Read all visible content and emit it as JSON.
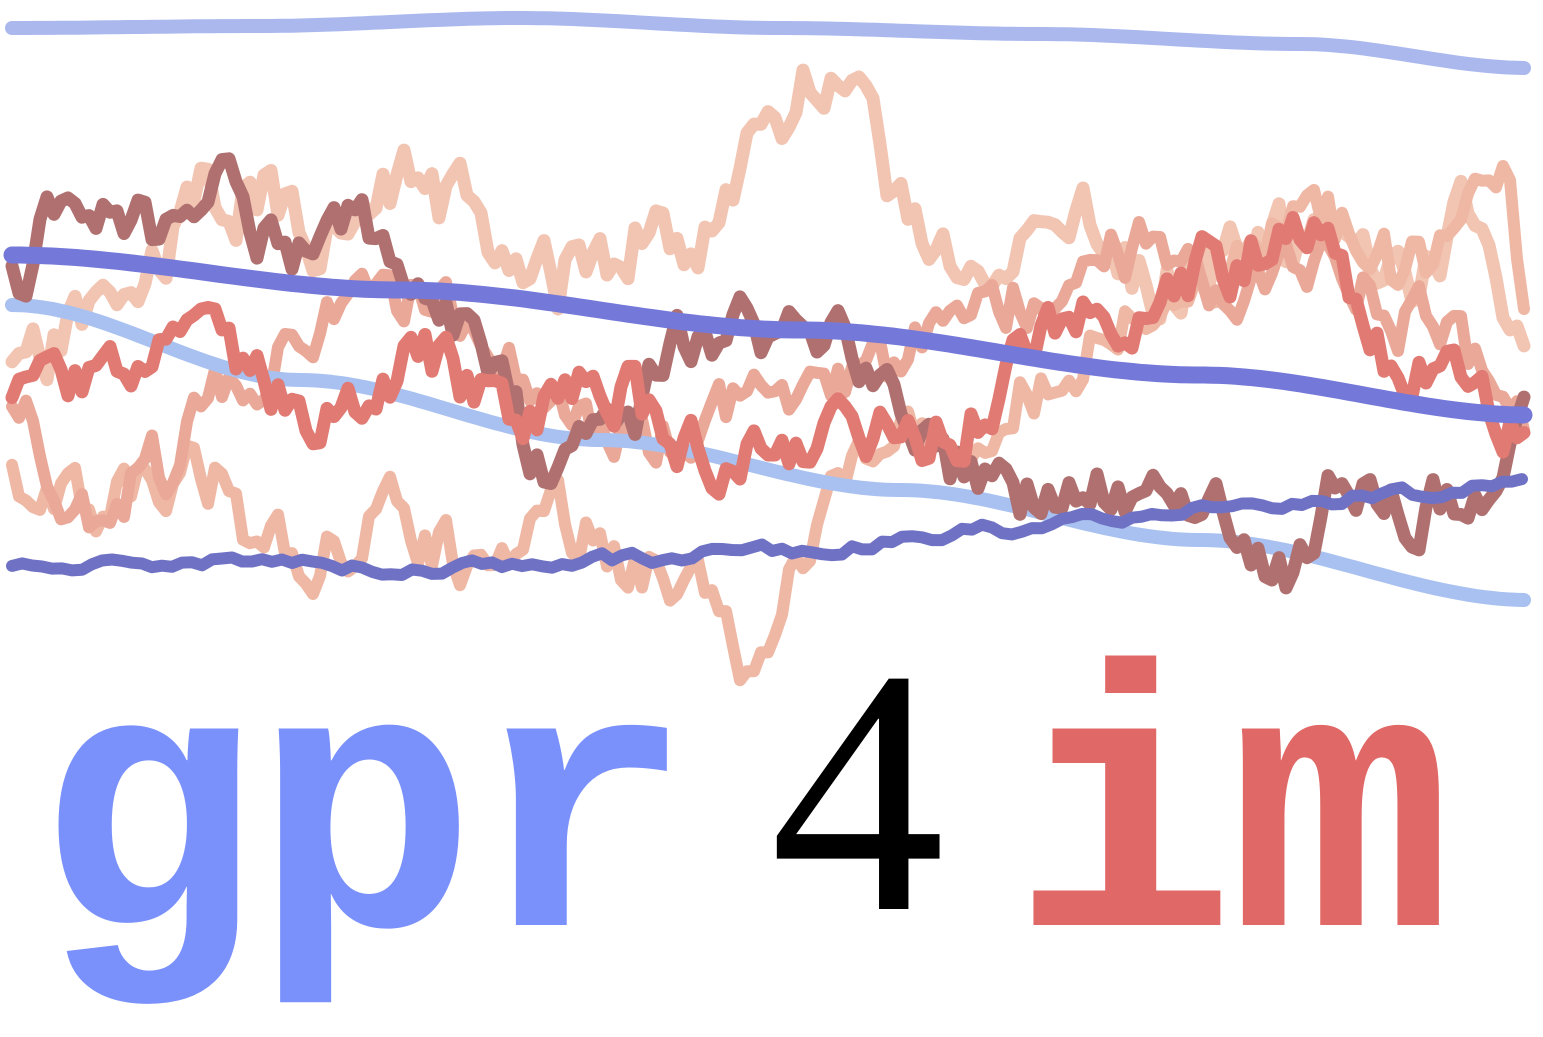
{
  "logo": {
    "wordmark": {
      "part1": {
        "text": "gpr",
        "color": "#7a91fb"
      },
      "part2": {
        "text": "4",
        "color": "#000000"
      },
      "part3": {
        "text": "im",
        "color": "#e06866"
      }
    },
    "trajectories": [
      {
        "name": "blue-smooth-top",
        "color": "#aab8ee"
      },
      {
        "name": "red-sample-1",
        "color": "#b07070"
      },
      {
        "name": "red-sample-2",
        "color": "#e07a73"
      },
      {
        "name": "red-sample-3",
        "color": "#efb8a5"
      },
      {
        "name": "red-sample-4",
        "color": "#eaa898"
      },
      {
        "name": "red-sample-5",
        "color": "#f2c4b2"
      },
      {
        "name": "blue-line-dark",
        "color": "#7478d8"
      },
      {
        "name": "blue-line-light",
        "color": "#a9c1f0"
      },
      {
        "name": "blue-wavy-bottom",
        "color": "#6f72c4"
      }
    ]
  }
}
